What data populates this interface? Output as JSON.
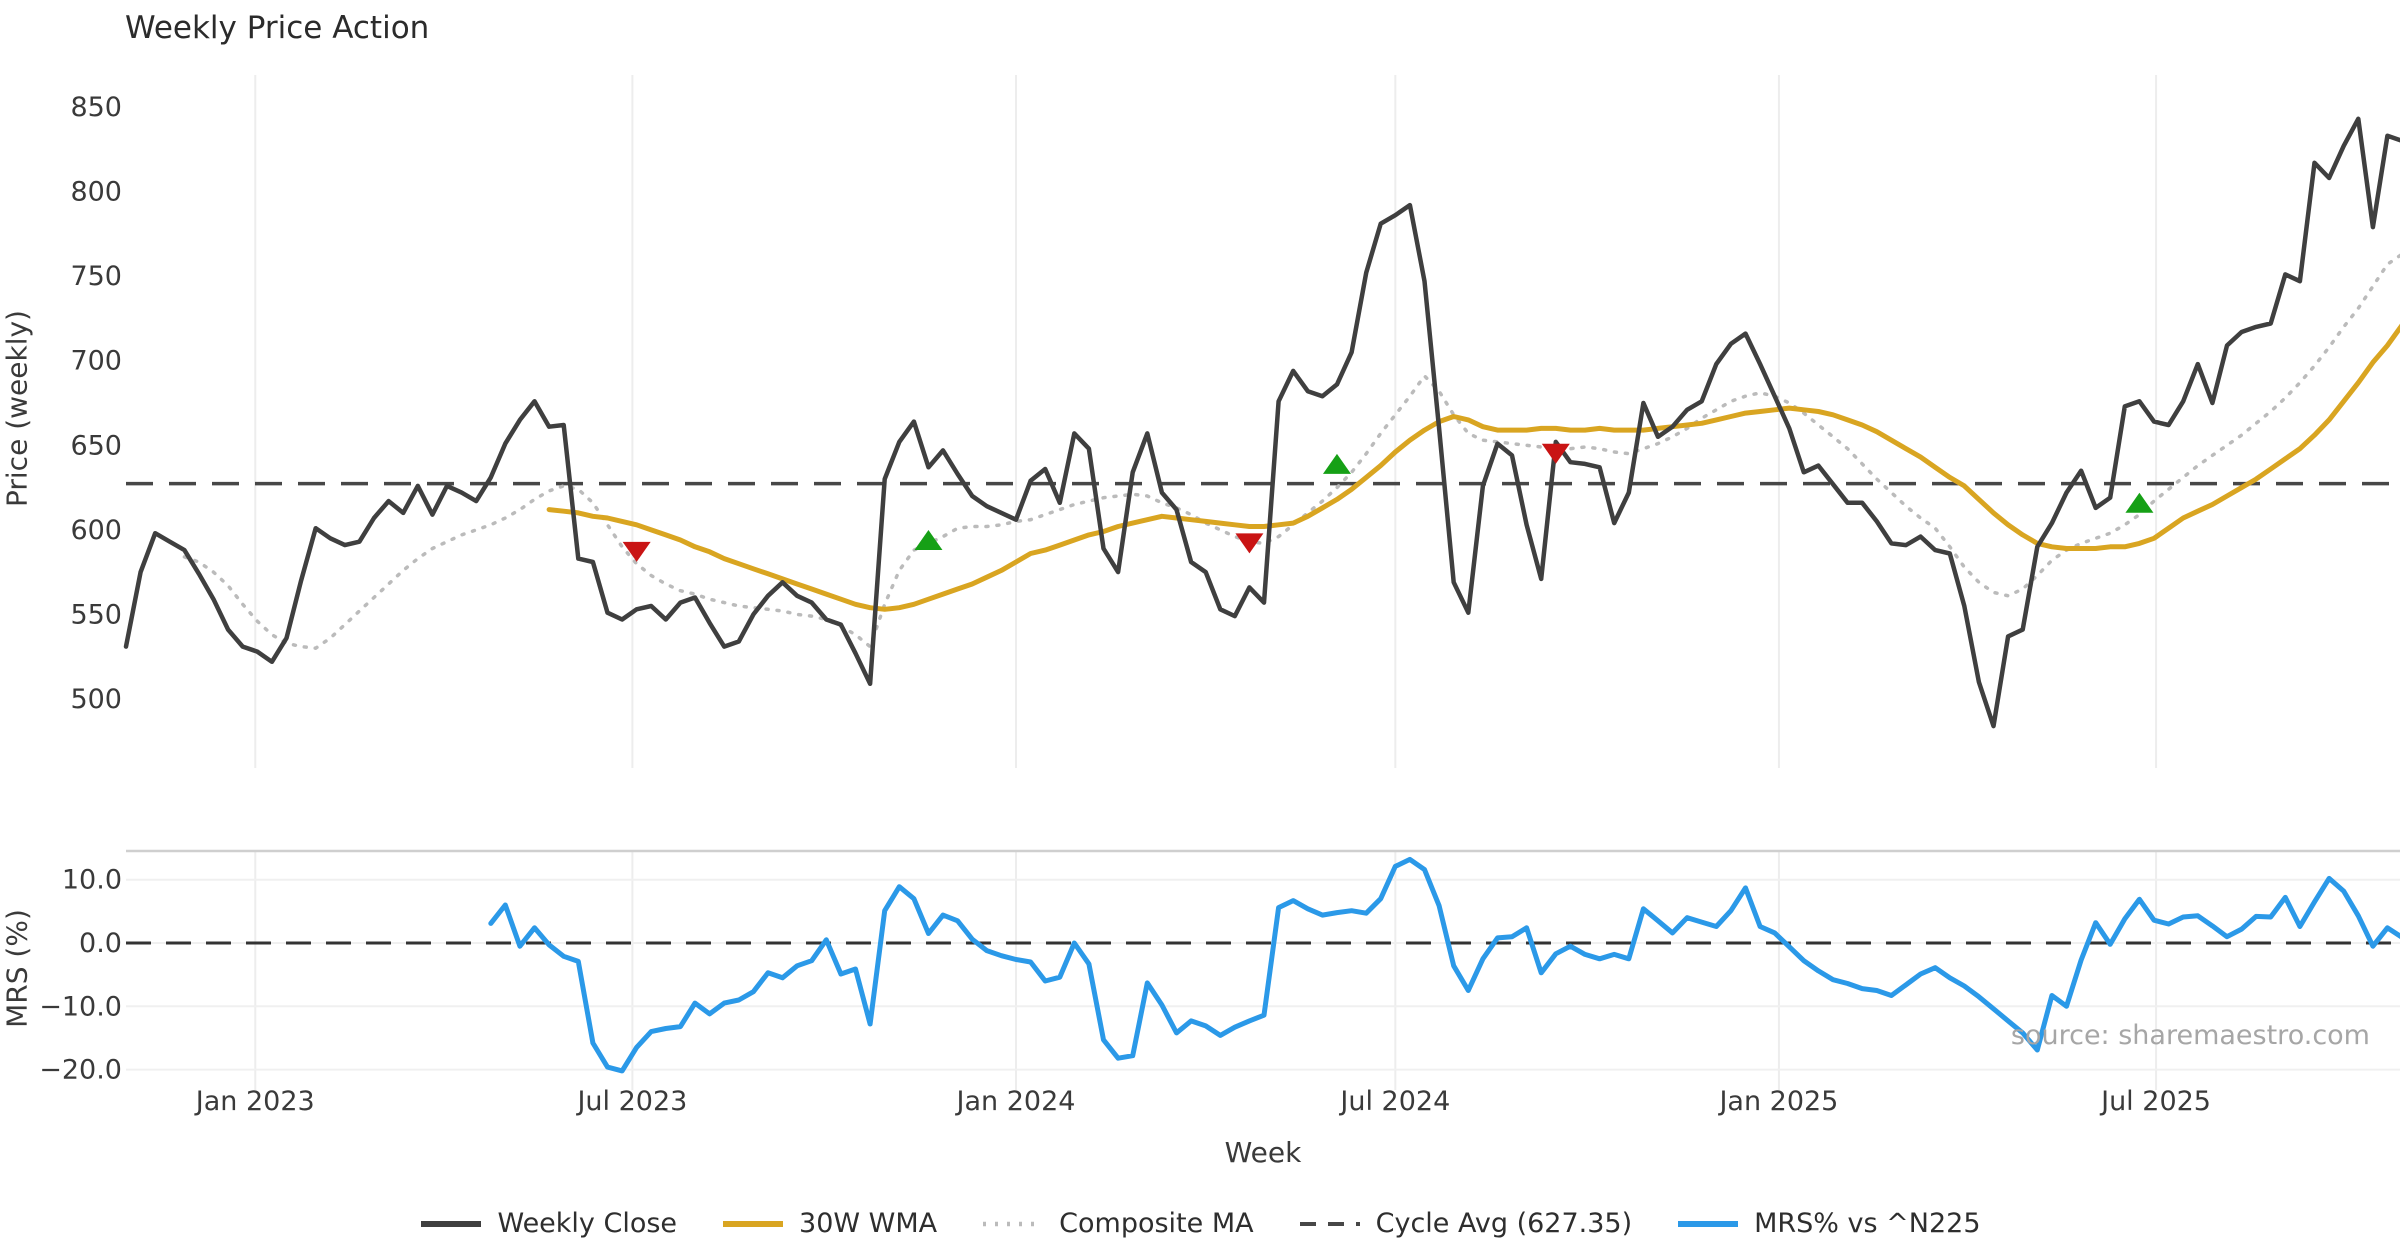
{
  "page": {
    "title": "Weekly Price Action",
    "xlabel": "Week",
    "source": "source: sharemaestro.com"
  },
  "colors": {
    "close": "#3f3f3f",
    "wma": "#d9a521",
    "composite": "#bbbbbb",
    "cycle": "#474747",
    "mrs": "#2b99e8",
    "sell_marker": "#c91414",
    "buy_marker": "#16a016",
    "grid_vertical": "#ededed",
    "grid_horizontal": "#f0f0f0",
    "panel_spine": "#cfcfcf",
    "tick_text": "#3a3a3a"
  },
  "legend": [
    {
      "label": "Weekly Close",
      "style": "solid",
      "color_key": "close"
    },
    {
      "label": "30W WMA",
      "style": "solid",
      "color_key": "wma"
    },
    {
      "label": "Composite MA",
      "style": "dotted",
      "color_key": "composite"
    },
    {
      "label": "Cycle Avg (627.35)",
      "style": "dashed",
      "color_key": "cycle"
    },
    {
      "label": "MRS% vs ^N225",
      "style": "solid",
      "color_key": "mrs"
    }
  ],
  "chart_data": [
    {
      "type": "line",
      "panel": "price",
      "title": "Weekly Price Action",
      "ylabel": "Price (weekly)",
      "x_unit": "weekly index starting 2022-10-31, 7-day step",
      "ylim": [
        459,
        869
      ],
      "yticks": [
        850,
        800,
        750,
        700,
        650,
        600,
        550,
        500
      ],
      "xticks": [
        {
          "label": "Jan 2023",
          "week": 8.86
        },
        {
          "label": "Jul 2023",
          "week": 34.71
        },
        {
          "label": "Jan 2024",
          "week": 61.0
        },
        {
          "label": "Jul 2024",
          "week": 87.0
        },
        {
          "label": "Jan 2025",
          "week": 113.29
        },
        {
          "label": "Jul 2025",
          "week": 139.14
        }
      ],
      "grid": "vertical-only",
      "cycle_avg": 627.35,
      "series": [
        {
          "name": "Weekly Close",
          "start_week": 0,
          "values": [
            531,
            575,
            598,
            593,
            588,
            574,
            559,
            541,
            531,
            528,
            522,
            536,
            570,
            601,
            595,
            591,
            593,
            607,
            617,
            610,
            626,
            609,
            626,
            622,
            617,
            631,
            651,
            665,
            676,
            661,
            662,
            583,
            581,
            551,
            547,
            553,
            555,
            547,
            557,
            560,
            545,
            531,
            534,
            550,
            561,
            569,
            561,
            557,
            547,
            544,
            527,
            509,
            630,
            652,
            664,
            637,
            647,
            633,
            620,
            614,
            610,
            606,
            629,
            636,
            616,
            657,
            648,
            589,
            575,
            634,
            657,
            622,
            612,
            581,
            575,
            553,
            549,
            566,
            557,
            676,
            694,
            682,
            679,
            686,
            705,
            752,
            781,
            786,
            792,
            747,
            660,
            569,
            551,
            626,
            651,
            644,
            603,
            571,
            652,
            640,
            639,
            637,
            604,
            622,
            675,
            655,
            661,
            671,
            676,
            698,
            710,
            716,
            698,
            679,
            660,
            634,
            638,
            627,
            616,
            616,
            605,
            592,
            591,
            596,
            588,
            586,
            555,
            510,
            484,
            537,
            541,
            590,
            604,
            622,
            635,
            613,
            619,
            673,
            676,
            664,
            662,
            676,
            698,
            675,
            709,
            717,
            720,
            722,
            751,
            747,
            817,
            808,
            827,
            843,
            779,
            833,
            830
          ]
        },
        {
          "name": "30W WMA",
          "start_week": 29,
          "values": [
            612,
            611,
            610,
            608,
            607,
            605,
            603,
            600,
            597,
            594,
            590,
            587,
            583,
            580,
            577,
            574,
            571,
            568,
            565,
            562,
            559,
            556,
            554,
            553,
            554,
            556,
            559,
            562,
            565,
            568,
            572,
            576,
            581,
            586,
            588,
            591,
            594,
            597,
            599,
            602,
            604,
            606,
            608,
            607,
            606,
            605,
            604,
            603,
            602,
            602,
            603,
            604,
            608,
            613,
            618,
            624,
            631,
            638,
            646,
            653,
            659,
            664,
            667,
            665,
            661,
            659,
            659,
            659,
            660,
            660,
            659,
            659,
            660,
            659,
            659,
            659,
            660,
            661,
            662,
            663,
            665,
            667,
            669,
            670,
            671,
            672,
            671,
            670,
            668,
            665,
            662,
            658,
            653,
            648,
            643,
            637,
            631,
            626,
            618,
            610,
            603,
            597,
            592,
            590,
            589,
            589,
            589,
            590,
            590,
            592,
            595,
            601,
            607,
            611,
            615,
            620,
            625,
            630,
            636,
            642,
            648,
            656,
            665,
            676,
            687,
            699,
            709,
            721,
            732
          ]
        },
        {
          "name": "Composite MA",
          "start_week": 4,
          "values": [
            584,
            581,
            575,
            567,
            556,
            546,
            538,
            533,
            531,
            530,
            536,
            544,
            552,
            560,
            568,
            576,
            583,
            589,
            593,
            597,
            600,
            603,
            607,
            612,
            618,
            623,
            626,
            624,
            616,
            603,
            590,
            580,
            573,
            568,
            564,
            562,
            559,
            557,
            555,
            554,
            553,
            552,
            550,
            549,
            547,
            543,
            538,
            531,
            556,
            576,
            588,
            592,
            596,
            601,
            602,
            602,
            603,
            605,
            606,
            609,
            612,
            615,
            617,
            619,
            620,
            621,
            620,
            616,
            613,
            609,
            604,
            600,
            596,
            593,
            592,
            596,
            603,
            610,
            617,
            625,
            634,
            645,
            657,
            668,
            679,
            691,
            682,
            668,
            657,
            653,
            652,
            651,
            650,
            649,
            648,
            648,
            649,
            648,
            646,
            645,
            648,
            651,
            655,
            660,
            666,
            671,
            676,
            679,
            681,
            679,
            675,
            669,
            662,
            655,
            648,
            639,
            630,
            622,
            614,
            607,
            601,
            590,
            578,
            569,
            563,
            561,
            565,
            573,
            582,
            588,
            592,
            595,
            598,
            603,
            609,
            617,
            624,
            631,
            638,
            644,
            650,
            656,
            663,
            670,
            678,
            687,
            697,
            708,
            720,
            731,
            744,
            757,
            763
          ]
        },
        {
          "name": "Cycle Avg",
          "type": "hline",
          "value": 627.35
        }
      ],
      "markers": {
        "sell": [
          {
            "week": 35,
            "value": 587
          },
          {
            "week": 77,
            "value": 592
          },
          {
            "week": 98,
            "value": 645
          }
        ],
        "buy": [
          {
            "week": 55,
            "value": 594
          },
          {
            "week": 83,
            "value": 639
          },
          {
            "week": 138,
            "value": 616
          }
        ]
      }
    },
    {
      "type": "line",
      "panel": "mrs",
      "ylabel": "MRS (%)",
      "ylim": [
        -23.5,
        14.5
      ],
      "yticks": [
        10.0,
        0.0,
        -10.0,
        -20.0
      ],
      "ytick_labels": [
        "10.0",
        "0.0",
        "−10.0",
        "−20.0"
      ],
      "grid": "horizontal+vertical",
      "zero_line": 0,
      "series": [
        {
          "name": "MRS% vs ^N225",
          "start_week": 25,
          "values": [
            3.1,
            6.0,
            -0.5,
            2.4,
            -0.3,
            -2.1,
            -2.9,
            -15.8,
            -19.6,
            -20.2,
            -16.5,
            -14.0,
            -13.5,
            -13.2,
            -9.5,
            -11.2,
            -9.5,
            -9.0,
            -7.7,
            -4.7,
            -5.5,
            -3.6,
            -2.8,
            0.5,
            -4.9,
            -4.1,
            -12.8,
            5.1,
            8.9,
            7.0,
            1.5,
            4.4,
            3.5,
            0.6,
            -1.2,
            -2.0,
            -2.6,
            -3.0,
            -6.0,
            -5.4,
            0.0,
            -3.3,
            -15.3,
            -18.2,
            -17.8,
            -6.3,
            -9.8,
            -14.2,
            -12.3,
            -13.1,
            -14.6,
            -13.3,
            -12.3,
            -11.4,
            5.6,
            6.7,
            5.4,
            4.4,
            4.8,
            5.1,
            4.7,
            7.0,
            12.1,
            13.2,
            11.6,
            5.9,
            -3.6,
            -7.5,
            -2.5,
            0.8,
            1.0,
            2.4,
            -4.7,
            -1.7,
            -0.5,
            -1.8,
            -2.5,
            -1.8,
            -2.5,
            5.4,
            3.5,
            1.6,
            4.0,
            3.3,
            2.6,
            5.1,
            8.7,
            2.6,
            1.6,
            -0.6,
            -2.8,
            -4.4,
            -5.8,
            -6.4,
            -7.2,
            -7.5,
            -8.3,
            -6.6,
            -4.9,
            -3.9,
            -5.5,
            -6.8,
            -8.5,
            -10.4,
            -12.3,
            -14.2,
            -16.9,
            -8.3,
            -10.0,
            -2.7,
            3.2,
            -0.2,
            3.8,
            6.9,
            3.6,
            3.0,
            4.1,
            4.3,
            2.7,
            1.0,
            2.2,
            4.2,
            4.1,
            7.2,
            2.6,
            6.5,
            10.2,
            8.2,
            4.3,
            -0.5,
            2.4,
            0.9
          ]
        }
      ]
    }
  ]
}
